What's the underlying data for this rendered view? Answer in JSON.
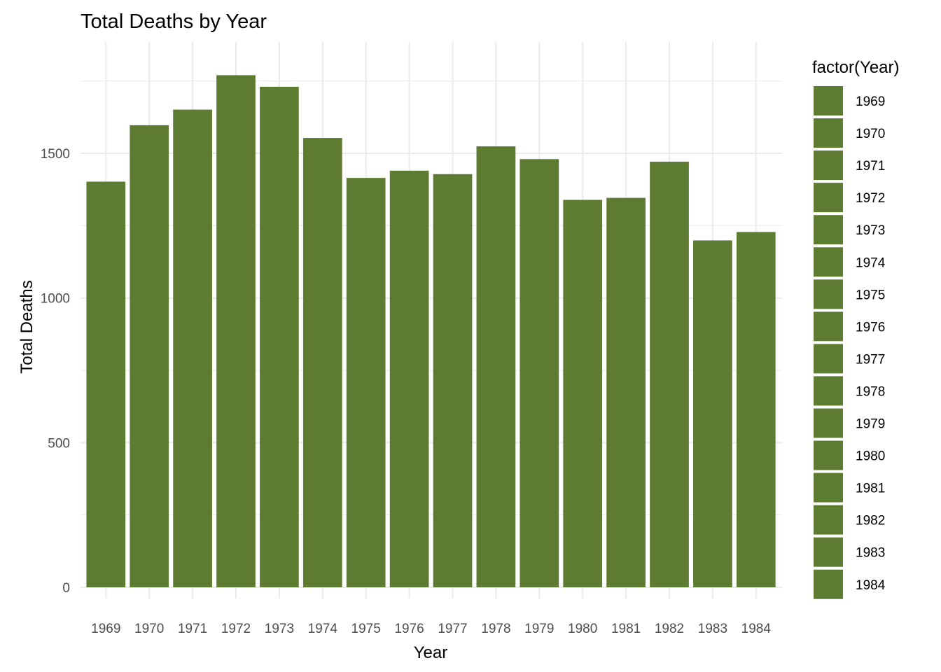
{
  "chart_data": {
    "type": "bar",
    "title": "Total Deaths by Year",
    "xlabel": "Year",
    "ylabel": "Total Deaths",
    "categories": [
      "1969",
      "1970",
      "1971",
      "1972",
      "1973",
      "1974",
      "1975",
      "1976",
      "1977",
      "1978",
      "1979",
      "1980",
      "1981",
      "1982",
      "1983",
      "1984"
    ],
    "values": [
      1402,
      1597,
      1651,
      1770,
      1730,
      1553,
      1415,
      1440,
      1428,
      1524,
      1480,
      1339,
      1346,
      1471,
      1199,
      1228
    ],
    "ylim": [
      0,
      1880
    ],
    "yticks": [
      0,
      500,
      1000,
      1500
    ],
    "ytick_labels": [
      "0",
      "500",
      "1000",
      "1500"
    ],
    "grid": true,
    "bar_color": "#5e7c31",
    "legend": {
      "title": "factor(Year)",
      "placement": "right",
      "entries": [
        "1969",
        "1970",
        "1971",
        "1972",
        "1973",
        "1974",
        "1975",
        "1976",
        "1977",
        "1978",
        "1979",
        "1980",
        "1981",
        "1982",
        "1983",
        "1984"
      ]
    }
  }
}
